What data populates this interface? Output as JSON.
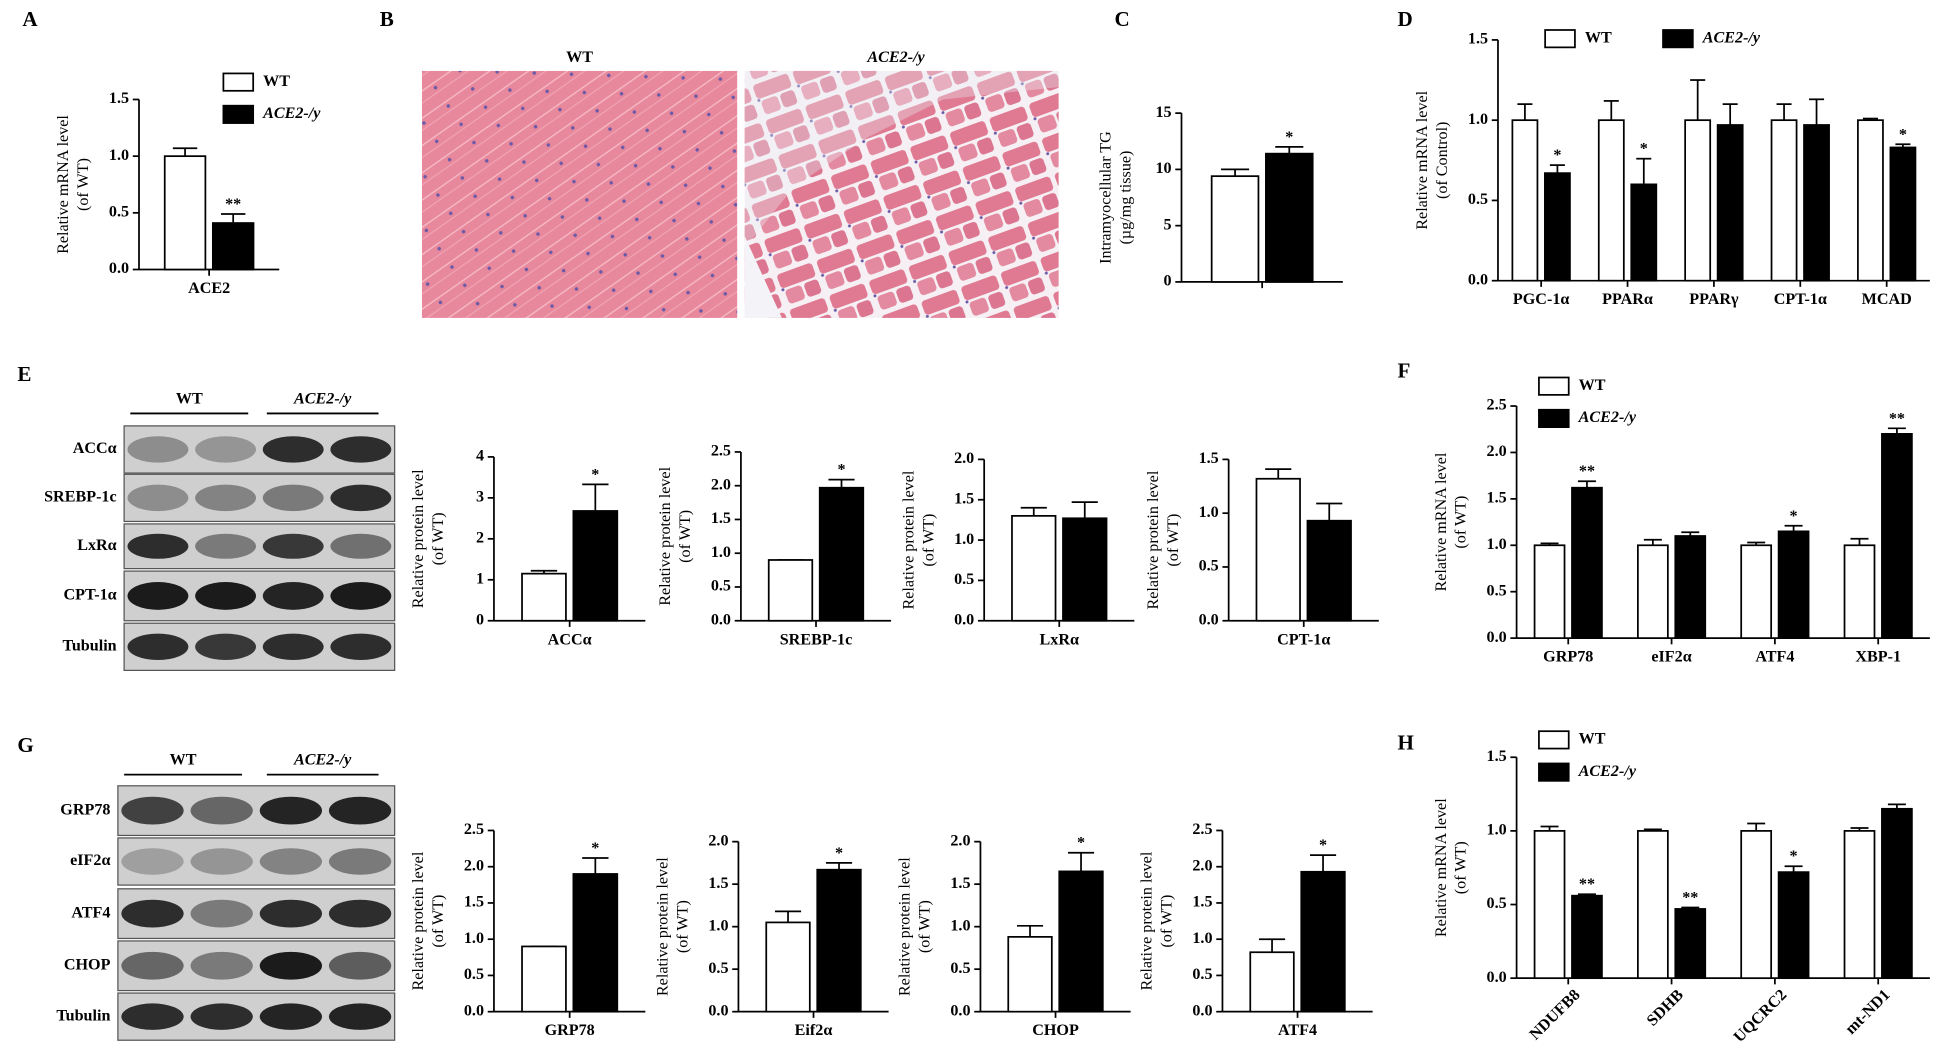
{
  "figure": {
    "panels": [
      "A",
      "B",
      "C",
      "D",
      "E",
      "F",
      "G",
      "H"
    ],
    "histology": [
      "WT",
      "ACE2-/y"
    ],
    "blot_e": {
      "groups": [
        "WT",
        "ACE2-/y"
      ],
      "rows": [
        "ACCα",
        "SREBP-1c",
        "LxRα",
        "CPT-1α",
        "Tubulin"
      ]
    },
    "blot_g": {
      "groups": [
        "WT",
        "ACE2-/y"
      ],
      "rows": [
        "GRP78",
        "eIF2α",
        "ATF4",
        "CHOP",
        "Tubulin"
      ]
    }
  },
  "chart_data": [
    {
      "type": "bar",
      "y_label": [
        "Relative mRNA level",
        "(of WT)"
      ],
      "categories": [
        "ACE2"
      ],
      "legend": "right",
      "series": [
        {
          "name": "WT",
          "color": "#ffffff",
          "values": [
            1.0
          ],
          "errors": [
            0.07
          ],
          "significance": [
            null
          ]
        },
        {
          "name": "ACE2-/y",
          "color": "#000000",
          "values": [
            0.41
          ],
          "errors": [
            0.08
          ],
          "significance": [
            "**"
          ]
        }
      ],
      "ylim": [
        0,
        1.5
      ],
      "yticks": [
        {
          "value": 0,
          "label": "0.0"
        },
        {
          "value": 0.5,
          "label": "0.5"
        },
        {
          "value": 1,
          "label": "1.0"
        },
        {
          "value": 1.5,
          "label": "1.5"
        }
      ]
    },
    {
      "type": "bar",
      "y_label": [
        "Intramyocellular TG",
        "(µg/mg tissue)"
      ],
      "categories": [
        null
      ],
      "series": [
        {
          "color": "#ffffff",
          "values": [
            9.4
          ],
          "errors": [
            0.6
          ],
          "significance": [
            null
          ]
        },
        {
          "color": "#000000",
          "values": [
            11.4
          ],
          "errors": [
            0.6
          ],
          "significance": [
            "*"
          ]
        }
      ],
      "ylim": [
        0,
        15
      ],
      "yticks": [
        0,
        5,
        10,
        15
      ]
    },
    {
      "type": "bar",
      "y_label": [
        "Relative mRNA level",
        "(of Control)"
      ],
      "categories": [
        "PGC-1α",
        "PPARα",
        "PPARγ",
        "CPT-1α",
        "MCAD"
      ],
      "legend": "top",
      "series": [
        {
          "name": "WT",
          "color": "#ffffff",
          "values": [
            1,
            1,
            1,
            1,
            1
          ],
          "errors": [
            0.1,
            0.12,
            0.25,
            0.1,
            0.01
          ],
          "significance": [
            null,
            null,
            null,
            null,
            null
          ]
        },
        {
          "name": "ACE2-/y",
          "color": "#000000",
          "values": [
            0.67,
            0.6,
            0.97,
            0.97,
            0.83
          ],
          "errors": [
            0.05,
            0.16,
            0.13,
            0.16,
            0.02
          ],
          "significance": [
            "*",
            "*",
            null,
            null,
            "*"
          ]
        }
      ],
      "ylim": [
        0,
        1.5
      ],
      "yticks": [
        {
          "value": 0,
          "label": "0.0"
        },
        {
          "value": 0.5,
          "label": "0.5"
        },
        {
          "value": 1,
          "label": "1.0"
        },
        {
          "value": 1.5,
          "label": "1.5"
        }
      ]
    },
    {
      "type": "bar",
      "y_label": [
        "Relative protein level",
        "(of WT)"
      ],
      "categories": [
        "ACCα"
      ],
      "series": [
        {
          "color": "#ffffff",
          "values": [
            1.15
          ],
          "errors": [
            0.07
          ],
          "significance": [
            null
          ]
        },
        {
          "color": "#000000",
          "values": [
            2.68
          ],
          "errors": [
            0.65
          ],
          "significance": [
            "*"
          ]
        }
      ],
      "ylim": [
        0,
        4
      ],
      "yticks": [
        0,
        1,
        2,
        3,
        4
      ]
    },
    {
      "type": "bar",
      "y_label": [
        "Relative protein level",
        "(of WT)"
      ],
      "categories": [
        "SREBP-1c"
      ],
      "series": [
        {
          "color": "#ffffff",
          "values": [
            0.9
          ],
          "errors": [
            0
          ],
          "significance": [
            null
          ]
        },
        {
          "color": "#000000",
          "values": [
            1.97
          ],
          "errors": [
            0.12
          ],
          "significance": [
            "*"
          ]
        }
      ],
      "ylim": [
        0,
        2.5
      ],
      "yticks": [
        {
          "value": 0,
          "label": "0.0"
        },
        {
          "value": 0.5,
          "label": "0.5"
        },
        {
          "value": 1,
          "label": "1.0"
        },
        {
          "value": 1.5,
          "label": "1.5"
        },
        {
          "value": 2,
          "label": "2.0"
        },
        {
          "value": 2.5,
          "label": "2.5"
        }
      ]
    },
    {
      "type": "bar",
      "y_label": [
        "Relative protein level",
        "(of WT)"
      ],
      "categories": [
        "LxRα"
      ],
      "series": [
        {
          "color": "#ffffff",
          "values": [
            1.3
          ],
          "errors": [
            0.1
          ],
          "significance": [
            null
          ]
        },
        {
          "color": "#000000",
          "values": [
            1.27
          ],
          "errors": [
            0.2
          ],
          "significance": [
            null
          ]
        }
      ],
      "ylim": [
        0,
        2
      ],
      "yticks": [
        {
          "value": 0,
          "label": "0.0"
        },
        {
          "value": 0.5,
          "label": "0.5"
        },
        {
          "value": 1,
          "label": "1.0"
        },
        {
          "value": 1.5,
          "label": "1.5"
        },
        {
          "value": 2,
          "label": "2.0"
        }
      ]
    },
    {
      "type": "bar",
      "y_label": [
        "Relative protein level",
        "(of WT)"
      ],
      "categories": [
        "CPT-1α"
      ],
      "series": [
        {
          "color": "#ffffff",
          "values": [
            1.32
          ],
          "errors": [
            0.09
          ],
          "significance": [
            null
          ]
        },
        {
          "color": "#000000",
          "values": [
            0.93
          ],
          "errors": [
            0.16
          ],
          "significance": [
            null
          ]
        }
      ],
      "ylim": [
        0,
        1.5
      ],
      "yticks": [
        {
          "value": 0,
          "label": "0.0"
        },
        {
          "value": 0.5,
          "label": "0.5"
        },
        {
          "value": 1,
          "label": "1.0"
        },
        {
          "value": 1.5,
          "label": "1.5"
        }
      ]
    },
    {
      "type": "bar",
      "y_label": [
        "Relative mRNA level",
        "(of WT)"
      ],
      "categories": [
        "GRP78",
        "eIF2α",
        "ATF4",
        "XBP-1"
      ],
      "legend": "left",
      "series": [
        {
          "name": "WT",
          "color": "#ffffff",
          "values": [
            1,
            1,
            1,
            1
          ],
          "errors": [
            0.02,
            0.06,
            0.03,
            0.07
          ],
          "significance": [
            null,
            null,
            null,
            null
          ]
        },
        {
          "name": "ACE2-/y",
          "color": "#000000",
          "values": [
            1.62,
            1.1,
            1.15,
            2.2
          ],
          "errors": [
            0.07,
            0.04,
            0.06,
            0.06
          ],
          "significance": [
            "**",
            null,
            "*",
            "**"
          ]
        }
      ],
      "ylim": [
        0,
        2.5
      ],
      "yticks": [
        {
          "value": 0,
          "label": "0.0"
        },
        {
          "value": 0.5,
          "label": "0.5"
        },
        {
          "value": 1,
          "label": "1.0"
        },
        {
          "value": 1.5,
          "label": "1.5"
        },
        {
          "value": 2,
          "label": "2.0"
        },
        {
          "value": 2.5,
          "label": "2.5"
        }
      ]
    },
    {
      "type": "bar",
      "y_label": [
        "Relative protein level",
        "(of WT)"
      ],
      "categories": [
        "GRP78"
      ],
      "series": [
        {
          "color": "#ffffff",
          "values": [
            0.9
          ],
          "errors": [
            0
          ],
          "significance": [
            null
          ]
        },
        {
          "color": "#000000",
          "values": [
            1.9
          ],
          "errors": [
            0.22
          ],
          "significance": [
            "*"
          ]
        }
      ],
      "ylim": [
        0,
        2.5
      ],
      "yticks": [
        {
          "value": 0,
          "label": "0.0"
        },
        {
          "value": 0.5,
          "label": "0.5"
        },
        {
          "value": 1,
          "label": "1.0"
        },
        {
          "value": 1.5,
          "label": "1.5"
        },
        {
          "value": 2,
          "label": "2.0"
        },
        {
          "value": 2.5,
          "label": "2.5"
        }
      ]
    },
    {
      "type": "bar",
      "y_label": [
        "Relative protein level",
        "(of WT)"
      ],
      "categories": [
        "Eif2α"
      ],
      "series": [
        {
          "color": "#ffffff",
          "values": [
            1.05
          ],
          "errors": [
            0.13
          ],
          "significance": [
            null
          ]
        },
        {
          "color": "#000000",
          "values": [
            1.67
          ],
          "errors": [
            0.08
          ],
          "significance": [
            "*"
          ]
        }
      ],
      "ylim": [
        0,
        2
      ],
      "yticks": [
        {
          "value": 0,
          "label": "0.0"
        },
        {
          "value": 0.5,
          "label": "0.5"
        },
        {
          "value": 1,
          "label": "1.0"
        },
        {
          "value": 1.5,
          "label": "1.5"
        },
        {
          "value": 2,
          "label": "2.0"
        }
      ]
    },
    {
      "type": "bar",
      "y_label": [
        "Relative protein level",
        "(of WT)"
      ],
      "categories": [
        "CHOP"
      ],
      "series": [
        {
          "color": "#ffffff",
          "values": [
            0.88
          ],
          "errors": [
            0.13
          ],
          "significance": [
            null
          ]
        },
        {
          "color": "#000000",
          "values": [
            1.65
          ],
          "errors": [
            0.22
          ],
          "significance": [
            "*"
          ]
        }
      ],
      "ylim": [
        0,
        2
      ],
      "yticks": [
        {
          "value": 0,
          "label": "0.0"
        },
        {
          "value": 0.5,
          "label": "0.5"
        },
        {
          "value": 1,
          "label": "1.0"
        },
        {
          "value": 1.5,
          "label": "1.5"
        },
        {
          "value": 2,
          "label": "2.0"
        }
      ]
    },
    {
      "type": "bar",
      "y_label": [
        "Relative protein level",
        "(of WT)"
      ],
      "categories": [
        "ATF4"
      ],
      "series": [
        {
          "color": "#ffffff",
          "values": [
            0.82
          ],
          "errors": [
            0.18
          ],
          "significance": [
            null
          ]
        },
        {
          "color": "#000000",
          "values": [
            1.93
          ],
          "errors": [
            0.23
          ],
          "significance": [
            "*"
          ]
        }
      ],
      "ylim": [
        0,
        2.5
      ],
      "yticks": [
        {
          "value": 0,
          "label": "0.0"
        },
        {
          "value": 0.5,
          "label": "0.5"
        },
        {
          "value": 1,
          "label": "1.0"
        },
        {
          "value": 1.5,
          "label": "1.5"
        },
        {
          "value": 2,
          "label": "2.0"
        },
        {
          "value": 2.5,
          "label": "2.5"
        }
      ]
    },
    {
      "type": "bar",
      "y_label": [
        "Relative mRNA level",
        "(of WT)"
      ],
      "categories": [
        "NDUFB8",
        "SDHB",
        "UQCRC2",
        "mt-ND1"
      ],
      "legend": "left",
      "x_label_rotation": -45,
      "series": [
        {
          "name": "WT",
          "color": "#ffffff",
          "values": [
            1,
            1,
            1,
            1
          ],
          "errors": [
            0.03,
            0.01,
            0.05,
            0.02
          ],
          "significance": [
            null,
            null,
            null,
            null
          ]
        },
        {
          "name": "ACE2-/y",
          "color": "#000000",
          "values": [
            0.56,
            0.47,
            0.72,
            1.15
          ],
          "errors": [
            0.01,
            0.01,
            0.04,
            0.03
          ],
          "significance": [
            "**",
            "**",
            "*",
            null
          ]
        }
      ],
      "ylim": [
        0,
        1.5
      ],
      "yticks": [
        {
          "value": 0,
          "label": "0.0"
        },
        {
          "value": 0.5,
          "label": "0.5"
        },
        {
          "value": 1,
          "label": "1.0"
        },
        {
          "value": 1.5,
          "label": "1.5"
        }
      ]
    }
  ]
}
